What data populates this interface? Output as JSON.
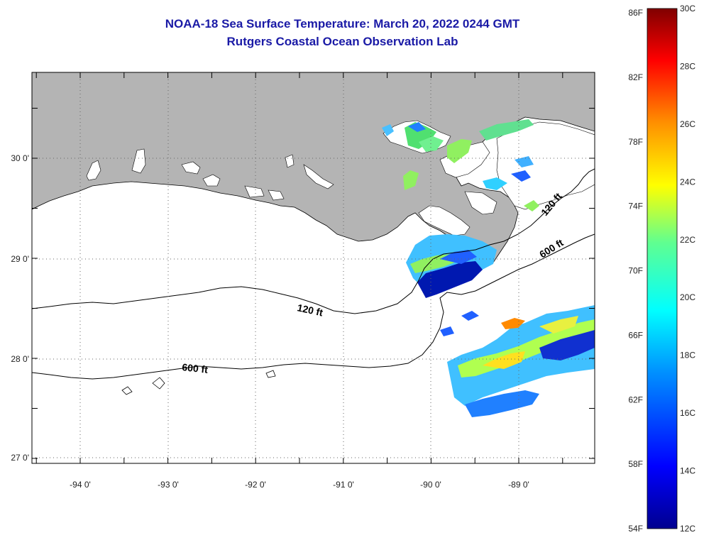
{
  "title": {
    "line1": "NOAA-18 Sea Surface Temperature:  March 20, 2022 0244 GMT",
    "line2": "Rutgers Coastal Ocean Observation Lab"
  },
  "map": {
    "lon_labels": [
      "-94 0'",
      "-93 0'",
      "-92 0'",
      "-91 0'",
      "-90 0'",
      "-89 0'"
    ],
    "lat_labels": [
      "30 0'",
      "29 0'",
      "28 0'",
      "27 0'"
    ],
    "contour_labels": [
      "120 ft",
      "600 ft",
      "120 ft",
      "600 ft"
    ],
    "colors": {
      "land": "#b4b4b4",
      "ocean": "#ffffff",
      "title": "#1a1aa6"
    }
  },
  "colorbar": {
    "f_labels": [
      "86F",
      "82F",
      "78F",
      "74F",
      "70F",
      "66F",
      "62F",
      "58F",
      "54F"
    ],
    "c_labels": [
      "30C",
      "28C",
      "26C",
      "24C",
      "22C",
      "20C",
      "18C",
      "16C",
      "14C",
      "12C"
    ],
    "range_c": [
      12,
      30
    ],
    "range_f": [
      54,
      86
    ]
  }
}
